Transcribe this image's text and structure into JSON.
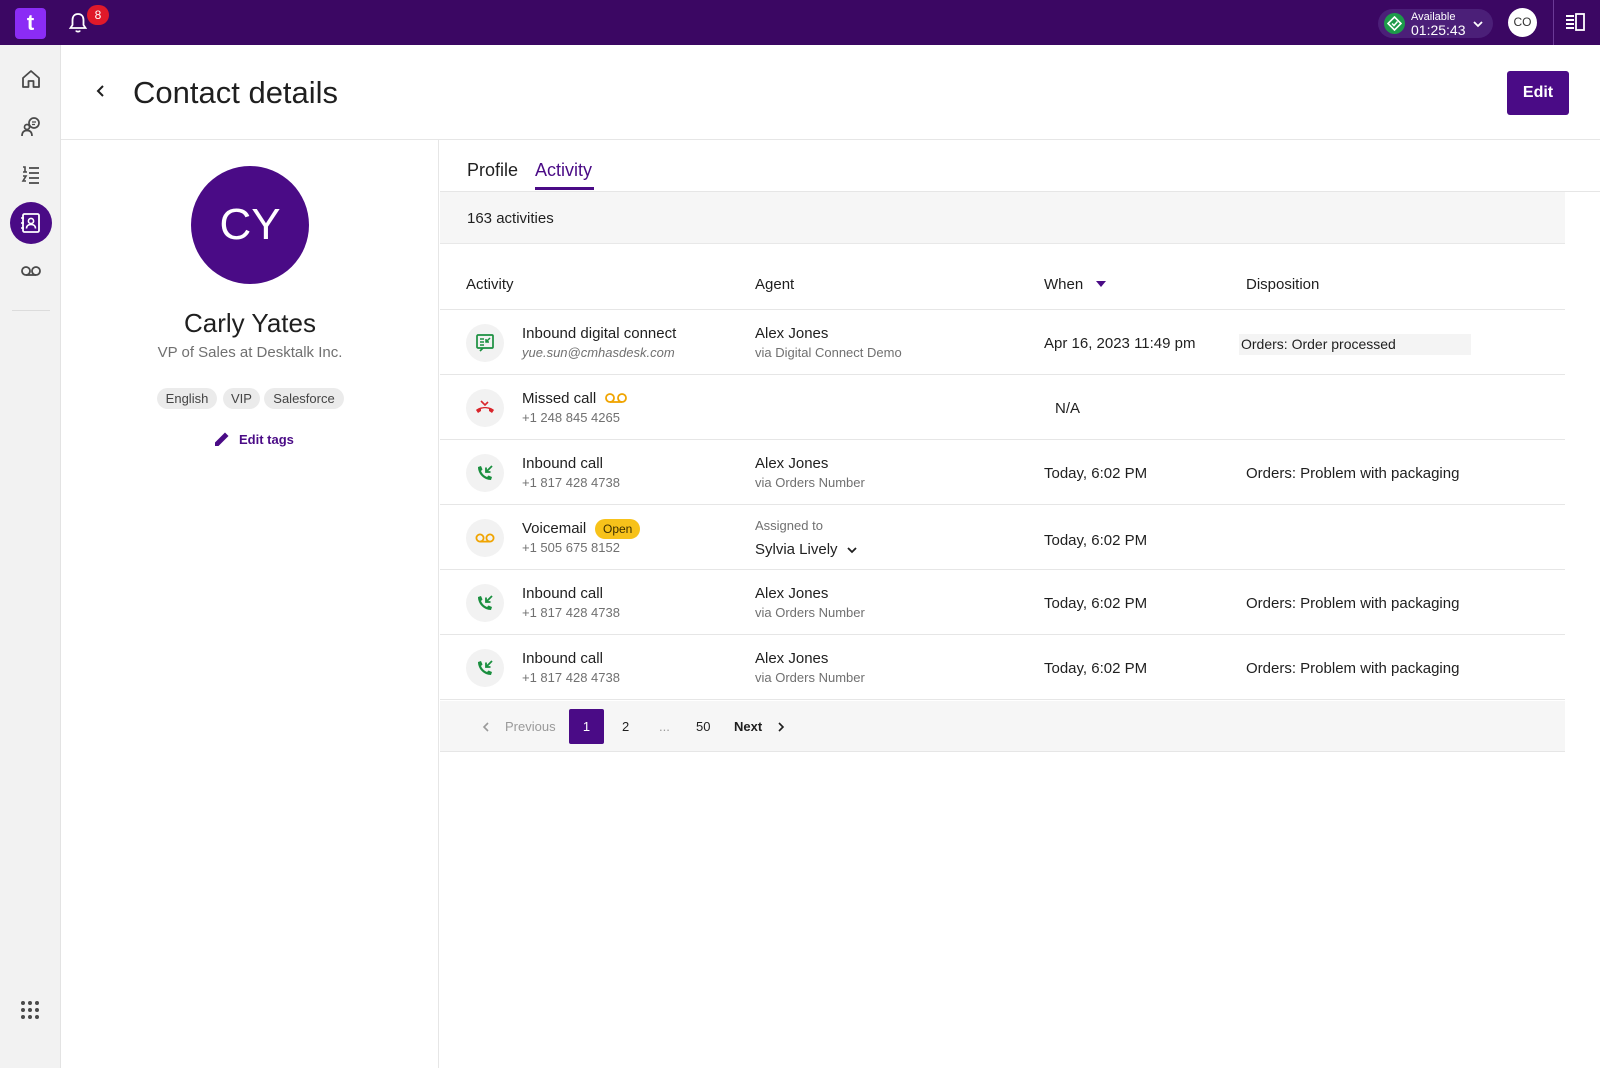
{
  "topbar": {
    "logo_text": "t",
    "notification_count": "8",
    "status_label": "Available",
    "status_timer": "01:25:43",
    "user_initials": "CO",
    "brand_color": "#3b0763"
  },
  "nav": {
    "items": [
      "home-icon",
      "conversations-icon",
      "queue-list-icon",
      "contacts-icon",
      "voicemail-icon"
    ],
    "active": "contacts-icon"
  },
  "header": {
    "title": "Contact details",
    "edit_label": "Edit"
  },
  "contact": {
    "initials": "CY",
    "name": "Carly Yates",
    "role": "VP of Sales at Desktalk Inc.",
    "tags": [
      "English",
      "VIP",
      "Salesforce"
    ],
    "edit_tags_label": "Edit tags"
  },
  "tabs": [
    "Profile",
    "Activity"
  ],
  "active_tab": "Activity",
  "activity_count": "163 activities",
  "columns": {
    "activity": "Activity",
    "agent": "Agent",
    "when": "When",
    "disposition": "Disposition"
  },
  "rows": [
    {
      "icon": "digital-connect-icon",
      "title": "Inbound digital connect",
      "subtitle": "yue.sun@cmhasdesk.com",
      "agent": "Alex Jones",
      "via": "via Digital Connect Demo",
      "when": "Apr 16, 2023 11:49 pm",
      "disposition": "Orders: Order processed"
    },
    {
      "icon": "missed-call-icon",
      "title": "Missed call",
      "subtitle": "+1 248 845 4265",
      "agent": "",
      "via": "",
      "when": "N/A",
      "disposition": ""
    },
    {
      "icon": "inbound-call-icon",
      "title": "Inbound call",
      "subtitle": "+1 817 428 4738",
      "agent": "Alex Jones",
      "via": "via Orders Number",
      "when": "Today, 6:02 PM",
      "disposition": "Orders: Problem with packaging"
    },
    {
      "icon": "voicemail-icon",
      "title": "Voicemail",
      "badge": "Open",
      "subtitle": "+1 505 675 8152",
      "assigned_label": "Assigned to",
      "assigned_to": "Sylvia Lively",
      "when": "Today, 6:02 PM",
      "disposition": ""
    },
    {
      "icon": "inbound-call-icon",
      "title": "Inbound call",
      "subtitle": "+1 817 428 4738",
      "agent": "Alex Jones",
      "via": "via Orders Number",
      "when": "Today, 6:02 PM",
      "disposition": "Orders: Problem with packaging"
    },
    {
      "icon": "inbound-call-icon",
      "title": "Inbound call",
      "subtitle": "+1 817 428 4738",
      "agent": "Alex Jones",
      "via": "via Orders Number",
      "when": "Today, 6:02 PM",
      "disposition": "Orders: Problem with packaging"
    }
  ],
  "pagination": {
    "previous": "Previous",
    "current": "1",
    "page2": "2",
    "ellipsis": "...",
    "last": "50",
    "next": "Next"
  }
}
